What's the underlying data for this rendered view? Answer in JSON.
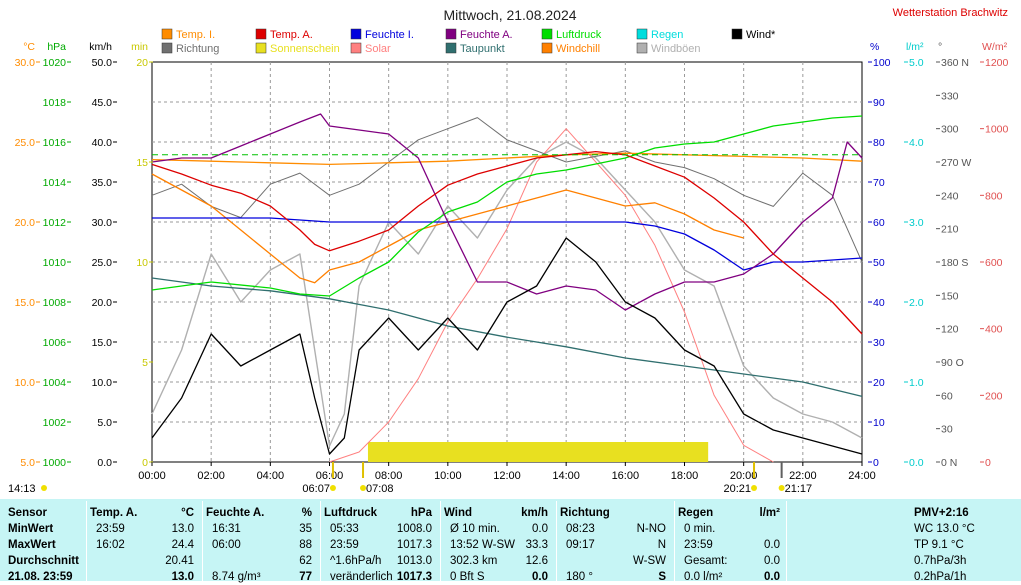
{
  "title": "Mittwoch, 21.08.2024",
  "station": "Wetterstation Brachwitz",
  "colors": {
    "temp_i": "#ff8c00",
    "temp_a": "#dd0000",
    "feuchte_i": "#0000dd",
    "feuchte_a": "#800080",
    "luftdruck": "#00dd00",
    "regen": "#00dddd",
    "wind": "#000000",
    "richtung": "#707070",
    "sonnenschein": "#e8e020",
    "solar": "#ff8080",
    "taupunkt": "#306f6f",
    "windchill": "#ff8000",
    "windboeen": "#b0b0b0"
  },
  "axes": {
    "left": [
      {
        "unit": "°C",
        "ticks": [
          "30.0",
          "25.0",
          "20.0",
          "15.0",
          "10.0",
          "5.0"
        ],
        "color": "#ff8c00"
      },
      {
        "unit": "hPa",
        "ticks": [
          "1020",
          "1018",
          "1016",
          "1014",
          "1012",
          "1010",
          "1008",
          "1006",
          "1004",
          "1002",
          "1000"
        ],
        "color": "#00aa00"
      },
      {
        "unit": "km/h",
        "ticks": [
          "50.0",
          "45.0",
          "40.0",
          "35.0",
          "30.0",
          "25.0",
          "20.0",
          "15.0",
          "10.0",
          "5.0",
          "0.0"
        ],
        "color": "#000000"
      },
      {
        "unit": "min",
        "ticks": [
          "20",
          "15",
          "10",
          "5",
          "0"
        ],
        "color": "#c8c800"
      }
    ],
    "right": [
      {
        "unit": "%",
        "ticks": [
          "100",
          "90",
          "80",
          "70",
          "60",
          "50",
          "40",
          "30",
          "20",
          "10",
          "0"
        ],
        "color": "#0000cc"
      },
      {
        "unit": "l/m²",
        "ticks": [
          "5.0",
          "4.0",
          "3.0",
          "2.0",
          "1.0",
          "0.0"
        ],
        "color": "#00cccc"
      },
      {
        "unit": "°",
        "ticks": [
          "360 N",
          "330",
          "300",
          "270 W",
          "240",
          "210",
          "180 S",
          "150",
          "120",
          "90 O",
          "60",
          "30",
          "0 N"
        ],
        "color": "#555555"
      },
      {
        "unit": "W/m²",
        "ticks": [
          "1200",
          "1000",
          "800",
          "600",
          "400",
          "200",
          "0"
        ],
        "color": "#e05050"
      }
    ],
    "x_ticks": [
      "00:00",
      "02:00",
      "04:00",
      "06:00",
      "08:00",
      "10:00",
      "12:00",
      "14:00",
      "16:00",
      "18:00",
      "20:00",
      "22:00",
      "24:00"
    ]
  },
  "legend": [
    {
      "label": "Temp. I.",
      "color": "#ff8c00"
    },
    {
      "label": "Temp. A.",
      "color": "#dd0000"
    },
    {
      "label": "Feuchte I.",
      "color": "#0000dd"
    },
    {
      "label": "Feuchte A.",
      "color": "#800080"
    },
    {
      "label": "Luftdruck",
      "color": "#00dd00"
    },
    {
      "label": "Regen",
      "color": "#00dddd"
    },
    {
      "label": "Wind*",
      "color": "#000000"
    },
    {
      "label": "Richtung",
      "color": "#707070"
    },
    {
      "label": "Sonnenschein",
      "color": "#e8e020"
    },
    {
      "label": "Solar",
      "color": "#ff8080"
    },
    {
      "label": "Taupunkt",
      "color": "#306f6f"
    },
    {
      "label": "Windchill",
      "color": "#ff8000"
    },
    {
      "label": "Windböen",
      "color": "#b0b0b0"
    }
  ],
  "markers": {
    "now": "14:13",
    "sunrise": "06:07",
    "dawn": "07:08",
    "sunset": "20:21",
    "dusk": "21:17"
  },
  "chart_data": {
    "type": "line",
    "x_unit": "hours",
    "x_range": [
      0,
      24
    ],
    "series": [
      {
        "name": "Temp. I.",
        "unit": "°C",
        "x": [
          0,
          2,
          4,
          6,
          8,
          10,
          12,
          14,
          16,
          18,
          20,
          22,
          24
        ],
        "values": [
          23.9,
          23.8,
          23.7,
          23.6,
          23.7,
          23.8,
          24.0,
          24.2,
          24.3,
          24.2,
          24.1,
          24.0,
          23.8
        ]
      },
      {
        "name": "Temp. A.",
        "unit": "°C",
        "x": [
          0,
          1,
          2,
          3,
          4,
          5,
          5.5,
          6,
          7,
          8,
          9,
          10,
          11,
          12,
          13,
          14,
          15,
          16,
          17,
          18,
          19,
          20,
          21,
          22,
          23,
          24
        ],
        "values": [
          23.6,
          23.0,
          22.3,
          21.8,
          21.0,
          19.5,
          18.6,
          18.2,
          18.8,
          19.5,
          21.0,
          22.3,
          23.0,
          23.5,
          24.0,
          24.2,
          24.4,
          24.2,
          23.5,
          22.8,
          21.5,
          20.0,
          18.0,
          16.5,
          15.0,
          13.0
        ]
      },
      {
        "name": "Feuchte I.",
        "unit": "%",
        "x": [
          0,
          2,
          4,
          6,
          8,
          10,
          12,
          14,
          16,
          17,
          18,
          19,
          20,
          21,
          22,
          24
        ],
        "values": [
          61,
          61,
          61,
          60,
          60,
          60,
          60,
          60,
          60,
          59,
          57,
          53,
          48,
          50,
          50,
          51
        ]
      },
      {
        "name": "Feuchte A.",
        "unit": "%",
        "x": [
          0,
          1,
          2,
          3,
          4,
          5,
          5.7,
          6,
          7,
          8,
          9,
          10,
          11,
          12,
          13,
          14,
          15,
          16,
          17,
          18,
          19,
          20,
          21,
          22,
          23,
          23.5,
          24
        ],
        "values": [
          75,
          76,
          76,
          79,
          82,
          85,
          87,
          84,
          83,
          82,
          76,
          60,
          45,
          45,
          42,
          44,
          43,
          38,
          42,
          45,
          45,
          47,
          52,
          60,
          66,
          80,
          76
        ]
      },
      {
        "name": "Luftdruck",
        "unit": "hPa",
        "x": [
          0,
          2,
          4,
          5,
          6,
          7,
          8,
          9,
          10,
          11,
          12,
          13,
          14,
          15,
          16,
          17,
          18,
          19,
          20,
          21,
          22,
          23,
          24
        ],
        "values": [
          1008.6,
          1009.0,
          1008.7,
          1008.4,
          1008.3,
          1009.2,
          1010.0,
          1011.5,
          1012.5,
          1013.0,
          1014.0,
          1014.4,
          1014.6,
          1014.9,
          1015.2,
          1015.7,
          1015.9,
          1016.0,
          1016.4,
          1016.8,
          1017.0,
          1017.2,
          1017.3
        ]
      },
      {
        "name": "Taupunkt",
        "unit": "°C",
        "x": [
          0,
          2,
          4,
          6,
          8,
          10,
          12,
          14,
          16,
          18,
          20,
          22,
          24
        ],
        "values": [
          16.5,
          16.0,
          15.7,
          15.2,
          14.5,
          13.5,
          12.8,
          12.2,
          11.5,
          11.0,
          10.5,
          10.0,
          9.1
        ]
      },
      {
        "name": "Wind*",
        "unit": "km/h",
        "x": [
          0,
          1,
          2,
          3,
          4,
          5,
          5.5,
          6,
          6.5,
          7,
          8,
          9,
          10,
          11,
          12,
          13,
          14,
          15,
          16,
          17,
          18,
          19,
          20,
          21,
          22,
          23,
          24
        ],
        "values": [
          3,
          8,
          16,
          12,
          14,
          16,
          8,
          1,
          3,
          14,
          18,
          14,
          18,
          14,
          20,
          22,
          28,
          25,
          20,
          18,
          14,
          12,
          6,
          4,
          3,
          2,
          1
        ]
      },
      {
        "name": "Windböen",
        "unit": "km/h",
        "x": [
          0,
          1,
          2,
          3,
          4,
          5,
          5.5,
          6,
          6.5,
          7,
          8,
          9,
          10,
          11,
          12,
          13,
          14,
          15,
          16,
          17,
          18,
          19,
          20,
          21,
          22,
          23,
          24
        ],
        "values": [
          6,
          14,
          26,
          20,
          24,
          26,
          14,
          2,
          6,
          22,
          30,
          26,
          32,
          28,
          34,
          38,
          40,
          38,
          34,
          30,
          24,
          22,
          12,
          8,
          6,
          5,
          3
        ]
      },
      {
        "name": "Windchill",
        "unit": "°C",
        "x": [
          0,
          1,
          2,
          3,
          4,
          5,
          5.5,
          6,
          7,
          8,
          9,
          10,
          11,
          12,
          13,
          14,
          15,
          16,
          17,
          18,
          19,
          20
        ],
        "values": [
          23.0,
          22.0,
          21.0,
          19.5,
          18.0,
          16.5,
          16.2,
          17.0,
          17.5,
          18.5,
          19.5,
          20.0,
          20.5,
          21.0,
          21.5,
          22.0,
          21.5,
          21.0,
          21.2,
          20.5,
          19.5,
          19.0
        ]
      },
      {
        "name": "Solar",
        "unit": "W/m²",
        "x": [
          6,
          7,
          8,
          9,
          10,
          11,
          12,
          13,
          14,
          15,
          16,
          17,
          18,
          19,
          20,
          21
        ],
        "values": [
          0,
          30,
          120,
          250,
          420,
          550,
          700,
          900,
          1000,
          900,
          800,
          650,
          450,
          200,
          50,
          0
        ]
      },
      {
        "name": "Richtung",
        "unit": "°",
        "x": [
          0,
          1,
          2,
          3,
          4,
          5,
          6,
          7,
          8,
          9,
          10,
          11,
          12,
          13,
          14,
          15,
          16,
          17,
          18,
          19,
          20,
          21,
          22,
          23,
          24
        ],
        "values": [
          240,
          250,
          230,
          220,
          250,
          260,
          240,
          250,
          270,
          290,
          300,
          310,
          290,
          280,
          270,
          275,
          280,
          270,
          265,
          255,
          240,
          230,
          260,
          240,
          180
        ]
      },
      {
        "name": "Sonnenschein",
        "unit": "min",
        "x": [
          7.3,
          18.8
        ],
        "values": [
          1,
          1
        ]
      }
    ]
  },
  "table": {
    "columns": [
      {
        "head": "Sensor",
        "rows": [
          "MinWert",
          "MaxWert",
          "Durchschnitt",
          "21.08. 23:59"
        ]
      },
      {
        "head": "Temp. A.",
        "unit": "°C",
        "rows": [
          [
            "23:59",
            "13.0"
          ],
          [
            "16:02",
            "24.4"
          ],
          [
            "",
            "20.41"
          ],
          [
            "",
            "13.0"
          ]
        ]
      },
      {
        "head": "Feuchte A.",
        "unit": "%",
        "rows": [
          [
            "16:31",
            "35"
          ],
          [
            "06:00",
            "88"
          ],
          [
            "",
            "62"
          ],
          [
            "8.74 g/m³",
            "77"
          ]
        ]
      },
      {
        "head": "Luftdruck",
        "unit": "hPa",
        "rows": [
          [
            "05:33",
            "1008.0"
          ],
          [
            "23:59",
            "1017.3"
          ],
          [
            "^1.6hPa/h",
            "1013.0"
          ],
          [
            "veränderlich",
            "1017.3"
          ]
        ]
      },
      {
        "head": "Wind",
        "unit": "km/h",
        "rows": [
          [
            "Ø 10 min.",
            "0.0"
          ],
          [
            "13:52  W-SW",
            "33.3"
          ],
          [
            "302.3 km",
            "12.6"
          ],
          [
            "0 Bft S",
            "0.0"
          ]
        ]
      },
      {
        "head": "Richtung",
        "rows": [
          [
            "08:23",
            "N-NO"
          ],
          [
            "09:17",
            "N"
          ],
          [
            "",
            "W-SW"
          ],
          [
            "180 °",
            "S"
          ]
        ]
      },
      {
        "head": "Regen",
        "unit": "l/m²",
        "rows": [
          [
            "0 min.",
            ""
          ],
          [
            "23:59",
            "0.0"
          ],
          [
            "Gesamt:",
            "0.0"
          ],
          [
            "0.0 l/m²",
            "0.0"
          ]
        ]
      },
      {
        "head": "PMV+2:16",
        "rows": [
          "WC 13.0 °C",
          "TP 9.1 °C",
          "0.7hPa/3h",
          "0.2hPa/1h"
        ]
      }
    ]
  }
}
